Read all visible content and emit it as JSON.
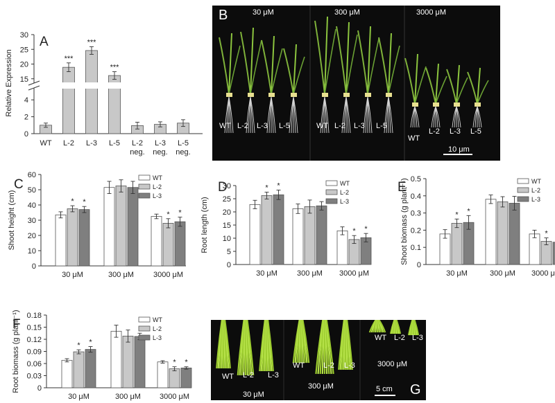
{
  "colors": {
    "wt": "#ffffff",
    "l2": "#c8c8c8",
    "l3": "#7f7f7f",
    "panelA": "#c8c8c8",
    "edge": "#555555"
  },
  "chart_data": [
    {
      "panel": "A",
      "type": "bar",
      "ylabel": "Relative Expression",
      "categories": [
        [
          "WT"
        ],
        [
          "L-2"
        ],
        [
          "L-3"
        ],
        [
          "L-5"
        ],
        [
          "L-2",
          "neg."
        ],
        [
          "L-3",
          "neg."
        ],
        [
          "L-5",
          "neg."
        ]
      ],
      "values": [
        1.0,
        18.9,
        24.6,
        16.1,
        0.95,
        1.1,
        1.25
      ],
      "errors": [
        0.25,
        1.5,
        1.3,
        1.3,
        0.4,
        0.3,
        0.4
      ],
      "significance": [
        "",
        "***",
        "***",
        "***",
        "",
        "",
        ""
      ],
      "yticks_lower": [
        "0",
        "2",
        "4"
      ],
      "yticks_upper": [
        "15",
        "20",
        "25",
        "30"
      ],
      "axis_break": true,
      "ylim_lower": [
        0,
        5
      ],
      "ylim_upper": [
        14,
        30
      ]
    },
    {
      "panel": "C",
      "type": "bar",
      "ylabel": "Shoot height (cm)",
      "categories": [
        "30 μM",
        "300 μM",
        "3000 μM"
      ],
      "legend": [
        "WT",
        "L-2",
        "L-3"
      ],
      "legend_position": "top-right",
      "series": [
        {
          "name": "WT",
          "values": [
            33.5,
            51.5,
            32.5
          ],
          "errors": [
            2,
            4,
            1.5
          ]
        },
        {
          "name": "L-2",
          "values": [
            37.5,
            52.5,
            28
          ],
          "errors": [
            2,
            4,
            3
          ]
        },
        {
          "name": "L-3",
          "values": [
            37,
            51.5,
            29
          ],
          "errors": [
            2,
            4,
            3
          ]
        }
      ],
      "significance": [
        [
          "",
          "*",
          "*"
        ],
        [
          "",
          "",
          ""
        ],
        [
          "",
          "*",
          "*"
        ]
      ],
      "ylim": [
        0,
        60
      ],
      "yticks": [
        "0",
        "10",
        "20",
        "30",
        "40",
        "50",
        "60"
      ]
    },
    {
      "panel": "D",
      "type": "bar",
      "ylabel": "Root length (cm)",
      "categories": [
        "30 μM",
        "300 μM",
        "3000 μM"
      ],
      "legend": [
        "WT",
        "L-2",
        "L-3"
      ],
      "legend_position": "top-right",
      "series": [
        {
          "name": "WT",
          "values": [
            22.8,
            21.2,
            12.8
          ],
          "errors": [
            1.6,
            1.8,
            1.5
          ]
        },
        {
          "name": "L-2",
          "values": [
            26.2,
            22,
            9.5
          ],
          "errors": [
            1.3,
            2.5,
            1.5
          ]
        },
        {
          "name": "L-3",
          "values": [
            26.5,
            22.3,
            10.2
          ],
          "errors": [
            1.8,
            1.6,
            1.6
          ]
        }
      ],
      "significance": [
        [
          "",
          "*",
          "*"
        ],
        [
          "",
          "",
          ""
        ],
        [
          "",
          "*",
          "*"
        ]
      ],
      "ylim": [
        0,
        30
      ],
      "yticks": [
        "0",
        "5",
        "10",
        "15",
        "20",
        "25",
        "30"
      ]
    },
    {
      "panel": "E",
      "type": "bar",
      "ylabel": "Shoot biomass (g plant⁻¹)",
      "categories": [
        "30 μM",
        "300 μM",
        "3000 μM"
      ],
      "legend": [
        "WT",
        "L-2",
        "L-3"
      ],
      "legend_position": "top-right",
      "series": [
        {
          "name": "WT",
          "values": [
            0.178,
            0.38,
            0.178
          ],
          "errors": [
            0.025,
            0.025,
            0.022
          ]
        },
        {
          "name": "L-2",
          "values": [
            0.24,
            0.365,
            0.135
          ],
          "errors": [
            0.025,
            0.03,
            0.02
          ]
        },
        {
          "name": "L-3",
          "values": [
            0.245,
            0.357,
            0.13
          ],
          "errors": [
            0.04,
            0.04,
            0.02
          ]
        }
      ],
      "significance": [
        [
          "",
          "*",
          "*"
        ],
        [
          "",
          "",
          ""
        ],
        [
          "",
          "*",
          "*"
        ]
      ],
      "ylim": [
        0,
        0.5
      ],
      "yticks": [
        "0",
        "0.1",
        "0.2",
        "0.3",
        "0.4",
        "0.5"
      ]
    },
    {
      "panel": "F",
      "type": "bar",
      "ylabel": "Root biomass (g plant⁻¹)",
      "categories": [
        "30 μM",
        "300 μM",
        "3000 μM"
      ],
      "legend": [
        "WT",
        "L-2",
        "L-3"
      ],
      "legend_position": "top-right",
      "series": [
        {
          "name": "WT",
          "values": [
            0.068,
            0.14,
            0.064
          ],
          "errors": [
            0.004,
            0.015,
            0.003
          ]
        },
        {
          "name": "L-2",
          "values": [
            0.089,
            0.128,
            0.047
          ],
          "errors": [
            0.005,
            0.015,
            0.005
          ]
        },
        {
          "name": "L-3",
          "values": [
            0.095,
            0.127,
            0.049
          ],
          "errors": [
            0.007,
            0.008,
            0.003
          ]
        }
      ],
      "significance": [
        [
          "",
          "*",
          "*"
        ],
        [
          "",
          "",
          ""
        ],
        [
          "",
          "*",
          "*"
        ]
      ],
      "ylim": [
        0,
        0.18
      ],
      "yticks": [
        "0",
        "0.03",
        "0.06",
        "0.09",
        "0.12",
        "0.15",
        "0.18"
      ]
    }
  ],
  "photoB": {
    "letter": "B",
    "conc": [
      "30 μM",
      "300 μM",
      "3000 μM"
    ],
    "labels": [
      [
        "WT",
        "L-2",
        "L-3",
        "L-5"
      ],
      [
        "WT",
        "L-2",
        "L-3",
        "L-5"
      ],
      [
        "WT",
        "L-2",
        "L-3",
        "L-5"
      ]
    ],
    "scale": "10 μm"
  },
  "photoG": {
    "letter": "G",
    "conc": [
      "30 μM",
      "300 μM",
      "3000 μM"
    ],
    "labels": [
      [
        "WT",
        "L-2",
        "L-3"
      ],
      [
        "WT",
        "L-2",
        "L-3"
      ],
      [
        "WT",
        "L-2",
        "L-3"
      ]
    ],
    "scale": "5 cm"
  }
}
